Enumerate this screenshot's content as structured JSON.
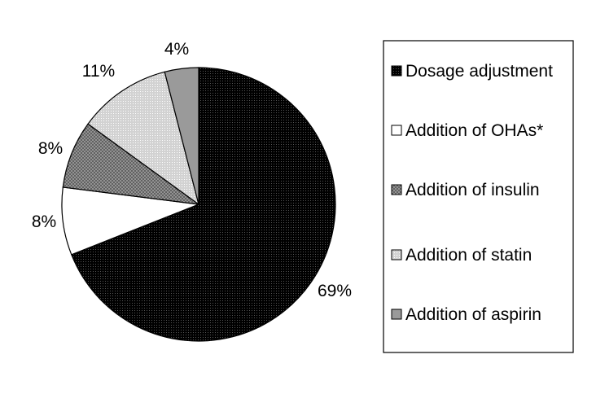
{
  "chart_data": {
    "type": "pie",
    "title": "",
    "categories": [
      "Dosage adjustment",
      "Addition of OHAs*",
      "Addition of insulin",
      "Addition of statin",
      "Addition of aspirin"
    ],
    "values": [
      69,
      8,
      8,
      11,
      4
    ],
    "data_labels": [
      "69%",
      "8%",
      "8%",
      "11%",
      "4%"
    ],
    "legend_position": "right",
    "colors": [
      "#000000",
      "#ffffff",
      "#8c8c8c",
      "#cfcfcf",
      "#9a9a9a"
    ],
    "patterns": [
      "dotted-dark",
      "solid",
      "crosshatch",
      "dotted-light",
      "solid"
    ],
    "start_angle_deg": 0,
    "direction": "clockwise"
  }
}
